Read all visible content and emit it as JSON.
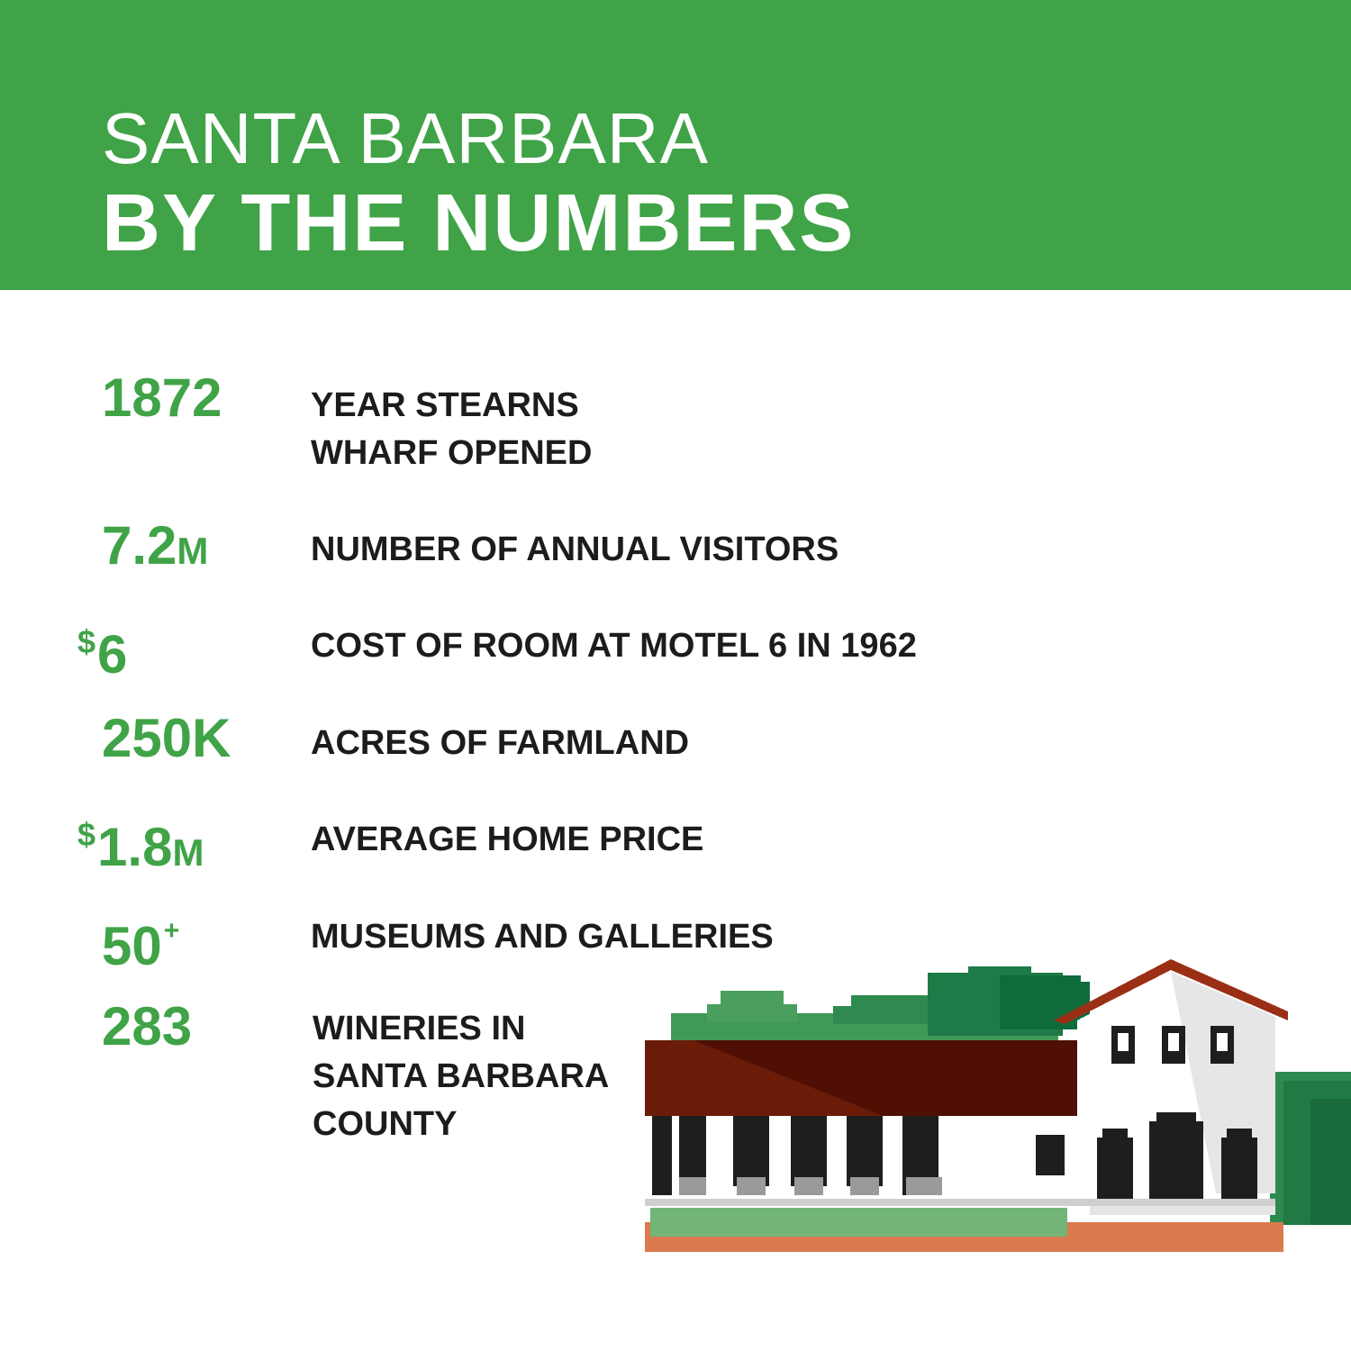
{
  "header": {
    "title_line1": "SANTA BARBARA",
    "title_line2": "BY THE NUMBERS"
  },
  "stats": [
    {
      "value": "1872",
      "label_lines": [
        "YEAR STEARNS",
        "WHARF OPENED"
      ]
    },
    {
      "value": "7.2",
      "suffix": "M",
      "label_lines": [
        "NUMBER OF ANNUAL VISITORS"
      ]
    },
    {
      "prefix": "$",
      "value": "6",
      "label_lines": [
        "COST OF ROOM AT MOTEL 6 IN 1962"
      ]
    },
    {
      "value": "250K",
      "label_lines": [
        "ACRES OF FARMLAND"
      ]
    },
    {
      "prefix": "$",
      "value": "1.8",
      "suffix": "M",
      "label_lines": [
        "AVERAGE HOME PRICE"
      ]
    },
    {
      "value": "50",
      "superscript": "+",
      "label_lines": [
        "MUSEUMS AND GALLERIES"
      ]
    },
    {
      "value": "283",
      "label_lines": [
        "WINERIES IN",
        "SANTA BARBARA",
        "COUNTY"
      ]
    }
  ],
  "colors": {
    "brand_green": "#40a347",
    "roof_red": "#7a1c0c",
    "tree_green": "#2f8a50",
    "path_orange": "#db7a4e"
  },
  "illustration": {
    "icon": "spanish-mission-building-icon"
  }
}
